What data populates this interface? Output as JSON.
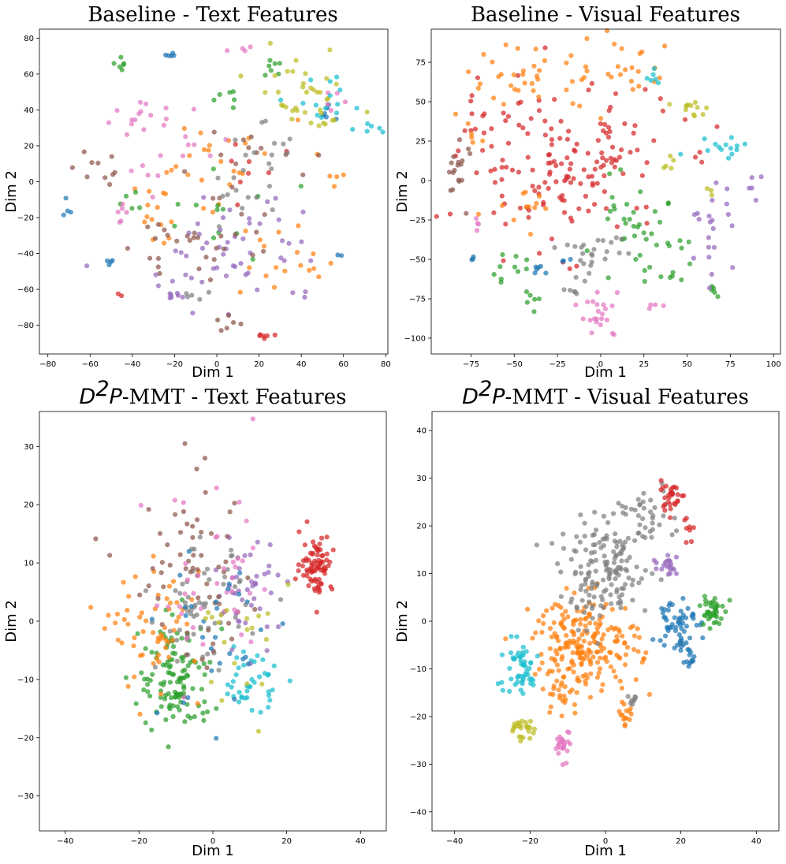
{
  "figure": {
    "palette": {
      "blue": "#1f77b4",
      "orange": "#ff7f0e",
      "green": "#2ca02c",
      "red": "#d62728",
      "purple": "#9467bd",
      "brown": "#8c564b",
      "pink": "#e377c2",
      "gray": "#7f7f7f",
      "olive": "#bcbd22",
      "cyan": "#17becf"
    }
  },
  "chart_data": [
    {
      "type": "scatter",
      "title": "Baseline - Text Features",
      "xlabel": "Dim 1",
      "ylabel": "Dim 2",
      "xlim": [
        -84,
        81
      ],
      "ylim": [
        -96,
        85
      ],
      "xticks": [
        -80,
        -60,
        -40,
        -20,
        0,
        20,
        40,
        60,
        80
      ],
      "yticks": [
        -80,
        -60,
        -40,
        -20,
        0,
        20,
        40,
        60,
        80
      ],
      "grid": false,
      "note": "t-SNE projection; points distributed as many small scattered clusters of all ten colors",
      "clusters": [
        {
          "color": "blue",
          "cx": -70,
          "cy": -14,
          "sx": 2,
          "sy": 3,
          "n": 4
        },
        {
          "color": "blue",
          "cx": -22,
          "cy": 70,
          "sx": 3,
          "sy": 1,
          "n": 5
        },
        {
          "color": "blue",
          "cx": -50,
          "cy": -45,
          "sx": 2,
          "sy": 1,
          "n": 4
        },
        {
          "color": "blue",
          "cx": 50,
          "cy": 37,
          "sx": 3,
          "sy": 2,
          "n": 6
        },
        {
          "color": "blue",
          "cx": 58,
          "cy": -41,
          "sx": 1,
          "sy": 1,
          "n": 2
        },
        {
          "color": "orange",
          "cx": -30,
          "cy": -20,
          "sx": 8,
          "sy": 10,
          "n": 14
        },
        {
          "color": "orange",
          "cx": 10,
          "cy": 15,
          "sx": 14,
          "sy": 10,
          "n": 16
        },
        {
          "color": "orange",
          "cx": 25,
          "cy": -45,
          "sx": 10,
          "sy": 10,
          "n": 12
        },
        {
          "color": "orange",
          "cx": 45,
          "cy": -45,
          "sx": 4,
          "sy": 4,
          "n": 6
        },
        {
          "color": "orange",
          "cx": -15,
          "cy": 0,
          "sx": 8,
          "sy": 8,
          "n": 8
        },
        {
          "color": "orange",
          "cx": 55,
          "cy": 5,
          "sx": 4,
          "sy": 8,
          "n": 5
        },
        {
          "color": "green",
          "cx": -45,
          "cy": 63,
          "sx": 2,
          "sy": 3,
          "n": 6
        },
        {
          "color": "green",
          "cx": 5,
          "cy": 47,
          "sx": 3,
          "sy": 3,
          "n": 6
        },
        {
          "color": "green",
          "cx": 25,
          "cy": 63,
          "sx": 3,
          "sy": 3,
          "n": 7
        },
        {
          "color": "green",
          "cx": 0,
          "cy": -20,
          "sx": 15,
          "sy": 15,
          "n": 14
        },
        {
          "color": "green",
          "cx": -40,
          "cy": -12,
          "sx": 3,
          "sy": 2,
          "n": 4
        },
        {
          "color": "red",
          "cx": 22,
          "cy": -86,
          "sx": 3,
          "sy": 1,
          "n": 6
        },
        {
          "color": "red",
          "cx": -45,
          "cy": -62,
          "sx": 1,
          "sy": 1,
          "n": 2
        },
        {
          "color": "red",
          "cx": 20,
          "cy": 5,
          "sx": 12,
          "sy": 10,
          "n": 8
        },
        {
          "color": "purple",
          "cx": 10,
          "cy": -45,
          "sx": 22,
          "sy": 14,
          "n": 40
        },
        {
          "color": "purple",
          "cx": -20,
          "cy": -62,
          "sx": 4,
          "sy": 2,
          "n": 6
        },
        {
          "color": "purple",
          "cx": 15,
          "cy": -20,
          "sx": 15,
          "sy": 10,
          "n": 14
        },
        {
          "color": "brown",
          "cx": -10,
          "cy": -35,
          "sx": 16,
          "sy": 14,
          "n": 30
        },
        {
          "color": "brown",
          "cx": -60,
          "cy": 10,
          "sx": 6,
          "sy": 6,
          "n": 10
        },
        {
          "color": "brown",
          "cx": 2,
          "cy": -78,
          "sx": 4,
          "sy": 3,
          "n": 6
        },
        {
          "color": "brown",
          "cx": 20,
          "cy": 10,
          "sx": 18,
          "sy": 12,
          "n": 14
        },
        {
          "color": "pink",
          "cx": -40,
          "cy": 35,
          "sx": 8,
          "sy": 6,
          "n": 12
        },
        {
          "color": "pink",
          "cx": -20,
          "cy": 20,
          "sx": 10,
          "sy": 12,
          "n": 16
        },
        {
          "color": "pink",
          "cx": -45,
          "cy": -18,
          "sx": 3,
          "sy": 3,
          "n": 6
        },
        {
          "color": "pink",
          "cx": 10,
          "cy": 74,
          "sx": 3,
          "sy": 1,
          "n": 4
        },
        {
          "color": "pink",
          "cx": 55,
          "cy": 45,
          "sx": 4,
          "sy": 4,
          "n": 5
        },
        {
          "color": "gray",
          "cx": 15,
          "cy": -5,
          "sx": 10,
          "sy": 10,
          "n": 16
        },
        {
          "color": "gray",
          "cx": -15,
          "cy": -62,
          "sx": 5,
          "sy": 2,
          "n": 5
        },
        {
          "color": "gray",
          "cx": 25,
          "cy": 25,
          "sx": 10,
          "sy": 6,
          "n": 8
        },
        {
          "color": "olive",
          "cx": 40,
          "cy": 50,
          "sx": 12,
          "sy": 10,
          "n": 28
        },
        {
          "color": "olive",
          "cx": 45,
          "cy": 35,
          "sx": 10,
          "sy": 4,
          "n": 10
        },
        {
          "color": "cyan",
          "cx": 55,
          "cy": 45,
          "sx": 10,
          "sy": 8,
          "n": 14
        },
        {
          "color": "cyan",
          "cx": 65,
          "cy": 30,
          "sx": 5,
          "sy": 2,
          "n": 6
        }
      ]
    },
    {
      "type": "scatter",
      "title": "Baseline - Visual Features",
      "xlabel": "Dim 1",
      "ylabel": "Dim 2",
      "xlim": [
        -98,
        104
      ],
      "ylim": [
        -110,
        96
      ],
      "xticks": [
        -75,
        -50,
        -25,
        0,
        25,
        50,
        75,
        100
      ],
      "yticks": [
        -100,
        -75,
        -50,
        -25,
        0,
        25,
        50,
        75
      ],
      "grid": false,
      "note": "t-SNE projection; red dominates the center, other classes form small streak clusters",
      "clusters": [
        {
          "color": "red",
          "cx": -20,
          "cy": 10,
          "sx": 30,
          "sy": 25,
          "n": 150
        },
        {
          "color": "red",
          "cx": -60,
          "cy": 35,
          "sx": 10,
          "sy": 10,
          "n": 18
        },
        {
          "color": "orange",
          "cx": -40,
          "cy": 65,
          "sx": 20,
          "sy": 10,
          "n": 34
        },
        {
          "color": "orange",
          "cx": 15,
          "cy": 70,
          "sx": 15,
          "sy": 12,
          "n": 24
        },
        {
          "color": "orange",
          "cx": -50,
          "cy": -20,
          "sx": 12,
          "sy": 6,
          "n": 12
        },
        {
          "color": "orange",
          "cx": -75,
          "cy": 25,
          "sx": 6,
          "sy": 6,
          "n": 6
        },
        {
          "color": "green",
          "cx": 20,
          "cy": -35,
          "sx": 15,
          "sy": 15,
          "n": 40
        },
        {
          "color": "green",
          "cx": -40,
          "cy": -80,
          "sx": 3,
          "sy": 5,
          "n": 6
        },
        {
          "color": "green",
          "cx": -55,
          "cy": -55,
          "sx": 6,
          "sy": 4,
          "n": 10
        },
        {
          "color": "green",
          "cx": 65,
          "cy": -70,
          "sx": 2,
          "sy": 2,
          "n": 5
        },
        {
          "color": "green",
          "cx": 40,
          "cy": -60,
          "sx": 4,
          "sy": 3,
          "n": 5
        },
        {
          "color": "brown",
          "cx": -82,
          "cy": 5,
          "sx": 4,
          "sy": 10,
          "n": 18
        },
        {
          "color": "gray",
          "cx": -5,
          "cy": -45,
          "sx": 10,
          "sy": 10,
          "n": 26
        },
        {
          "color": "gray",
          "cx": -15,
          "cy": -71,
          "sx": 3,
          "sy": 1,
          "n": 4
        },
        {
          "color": "purple",
          "cx": 65,
          "cy": -35,
          "sx": 6,
          "sy": 10,
          "n": 18
        },
        {
          "color": "purple",
          "cx": 80,
          "cy": -5,
          "sx": 10,
          "sy": 6,
          "n": 8
        },
        {
          "color": "pink",
          "cx": 0,
          "cy": -85,
          "sx": 6,
          "sy": 8,
          "n": 22
        },
        {
          "color": "pink",
          "cx": -70,
          "cy": -28,
          "sx": 2,
          "sy": 2,
          "n": 4
        },
        {
          "color": "pink",
          "cx": 30,
          "cy": -80,
          "sx": 3,
          "sy": 2,
          "n": 4
        },
        {
          "color": "cyan",
          "cx": 70,
          "cy": 22,
          "sx": 10,
          "sy": 3,
          "n": 14
        },
        {
          "color": "cyan",
          "cx": 30,
          "cy": 70,
          "sx": 3,
          "sy": 5,
          "n": 6
        },
        {
          "color": "blue",
          "cx": -35,
          "cy": -57,
          "sx": 3,
          "sy": 2,
          "n": 6
        },
        {
          "color": "blue",
          "cx": -75,
          "cy": -50,
          "sx": 2,
          "sy": 2,
          "n": 3
        },
        {
          "color": "blue",
          "cx": -20,
          "cy": -52,
          "sx": 2,
          "sy": 2,
          "n": 3
        },
        {
          "color": "olive",
          "cx": 55,
          "cy": 45,
          "sx": 8,
          "sy": 4,
          "n": 12
        },
        {
          "color": "olive",
          "cx": 40,
          "cy": 10,
          "sx": 2,
          "sy": 4,
          "n": 5
        },
        {
          "color": "olive",
          "cx": 65,
          "cy": -7,
          "sx": 2,
          "sy": 2,
          "n": 3
        }
      ]
    },
    {
      "type": "scatter",
      "title": "D²P-MMT - Text Features",
      "title_parts": {
        "d": "D",
        "sup": "2",
        "p": "P",
        "rest": "-MMT - Text Features"
      },
      "xlabel": "Dim 1",
      "ylabel": "Dim 2",
      "xlim": [
        -47,
        47
      ],
      "ylim": [
        -36,
        36
      ],
      "xticks": [
        -40,
        -20,
        0,
        20,
        40
      ],
      "yticks": [
        -30,
        -20,
        -10,
        0,
        10,
        20,
        30
      ],
      "grid": false,
      "note": "t-SNE projection; round mixed cloud with a distinct red cluster at the right",
      "clusters": [
        {
          "color": "red",
          "cx": 28,
          "cy": 10,
          "sx": 2.2,
          "sy": 2.5,
          "n": 80
        },
        {
          "color": "green",
          "cx": -10,
          "cy": -10,
          "sx": 5,
          "sy": 5,
          "n": 120
        },
        {
          "color": "orange",
          "cx": -15,
          "cy": -2,
          "sx": 6,
          "sy": 5,
          "n": 60
        },
        {
          "color": "cyan",
          "cx": 10,
          "cy": -10,
          "sx": 4,
          "sy": 3,
          "n": 40
        },
        {
          "color": "purple",
          "cx": 10,
          "cy": 5,
          "sx": 5,
          "sy": 5,
          "n": 40
        },
        {
          "color": "gray",
          "cx": -3,
          "cy": 2,
          "sx": 6,
          "sy": 5,
          "n": 60
        },
        {
          "color": "brown",
          "cx": -5,
          "cy": 8,
          "sx": 9,
          "sy": 8,
          "n": 60
        },
        {
          "color": "pink",
          "cx": 0,
          "cy": 5,
          "sx": 9,
          "sy": 9,
          "n": 40
        },
        {
          "color": "blue",
          "cx": 2,
          "cy": -2,
          "sx": 8,
          "sy": 8,
          "n": 30
        },
        {
          "color": "olive",
          "cx": 5,
          "cy": -5,
          "sx": 8,
          "sy": 8,
          "n": 20
        }
      ]
    },
    {
      "type": "scatter",
      "title": "D²P-MMT - Visual Features",
      "title_parts": {
        "d": "D",
        "sup": "2",
        "p": "P",
        "rest": "-MMT - Visual Features"
      },
      "xlabel": "Dim 1",
      "ylabel": "Dim 2",
      "xlim": [
        -46,
        46
      ],
      "ylim": [
        -44,
        44
      ],
      "xticks": [
        -40,
        -20,
        0,
        20,
        40
      ],
      "yticks": [
        -40,
        -30,
        -20,
        -10,
        0,
        10,
        20,
        30,
        40
      ],
      "grid": false,
      "note": "t-SNE projection; well-separated clusters, orange central mass with gray band above",
      "clusters": [
        {
          "color": "orange",
          "cx": -5,
          "cy": -5,
          "sx": 7,
          "sy": 5,
          "n": 220
        },
        {
          "color": "orange",
          "cx": 5,
          "cy": -19,
          "sx": 1,
          "sy": 1.5,
          "n": 15
        },
        {
          "color": "orange",
          "cx": -12,
          "cy": -17,
          "sx": 3,
          "sy": 2,
          "n": 15
        },
        {
          "color": "gray",
          "cx": 0,
          "cy": 10,
          "sx": 6,
          "sy": 5,
          "n": 150
        },
        {
          "color": "gray",
          "cx": 10,
          "cy": 22,
          "sx": 4,
          "sy": 3,
          "n": 40
        },
        {
          "color": "gray",
          "cx": 7,
          "cy": -16,
          "sx": 1,
          "sy": 1,
          "n": 8
        },
        {
          "color": "red",
          "cx": 17,
          "cy": 26,
          "sx": 2,
          "sy": 1.5,
          "n": 30
        },
        {
          "color": "red",
          "cx": 22,
          "cy": 19,
          "sx": 1,
          "sy": 1.5,
          "n": 8
        },
        {
          "color": "purple",
          "cx": 17,
          "cy": 12,
          "sx": 1.5,
          "sy": 1.5,
          "n": 20
        },
        {
          "color": "blue",
          "cx": 19,
          "cy": 0,
          "sx": 2.5,
          "sy": 3,
          "n": 60
        },
        {
          "color": "blue",
          "cx": 22,
          "cy": -8,
          "sx": 1,
          "sy": 1,
          "n": 10
        },
        {
          "color": "green",
          "cx": 28,
          "cy": 2,
          "sx": 1.5,
          "sy": 2,
          "n": 40
        },
        {
          "color": "cyan",
          "cx": -23,
          "cy": -10,
          "sx": 3,
          "sy": 3,
          "n": 50
        },
        {
          "color": "olive",
          "cx": -22,
          "cy": -23,
          "sx": 1.5,
          "sy": 1.5,
          "n": 25
        },
        {
          "color": "pink",
          "cx": -11,
          "cy": -26,
          "sx": 1,
          "sy": 1.5,
          "n": 25
        }
      ]
    }
  ]
}
